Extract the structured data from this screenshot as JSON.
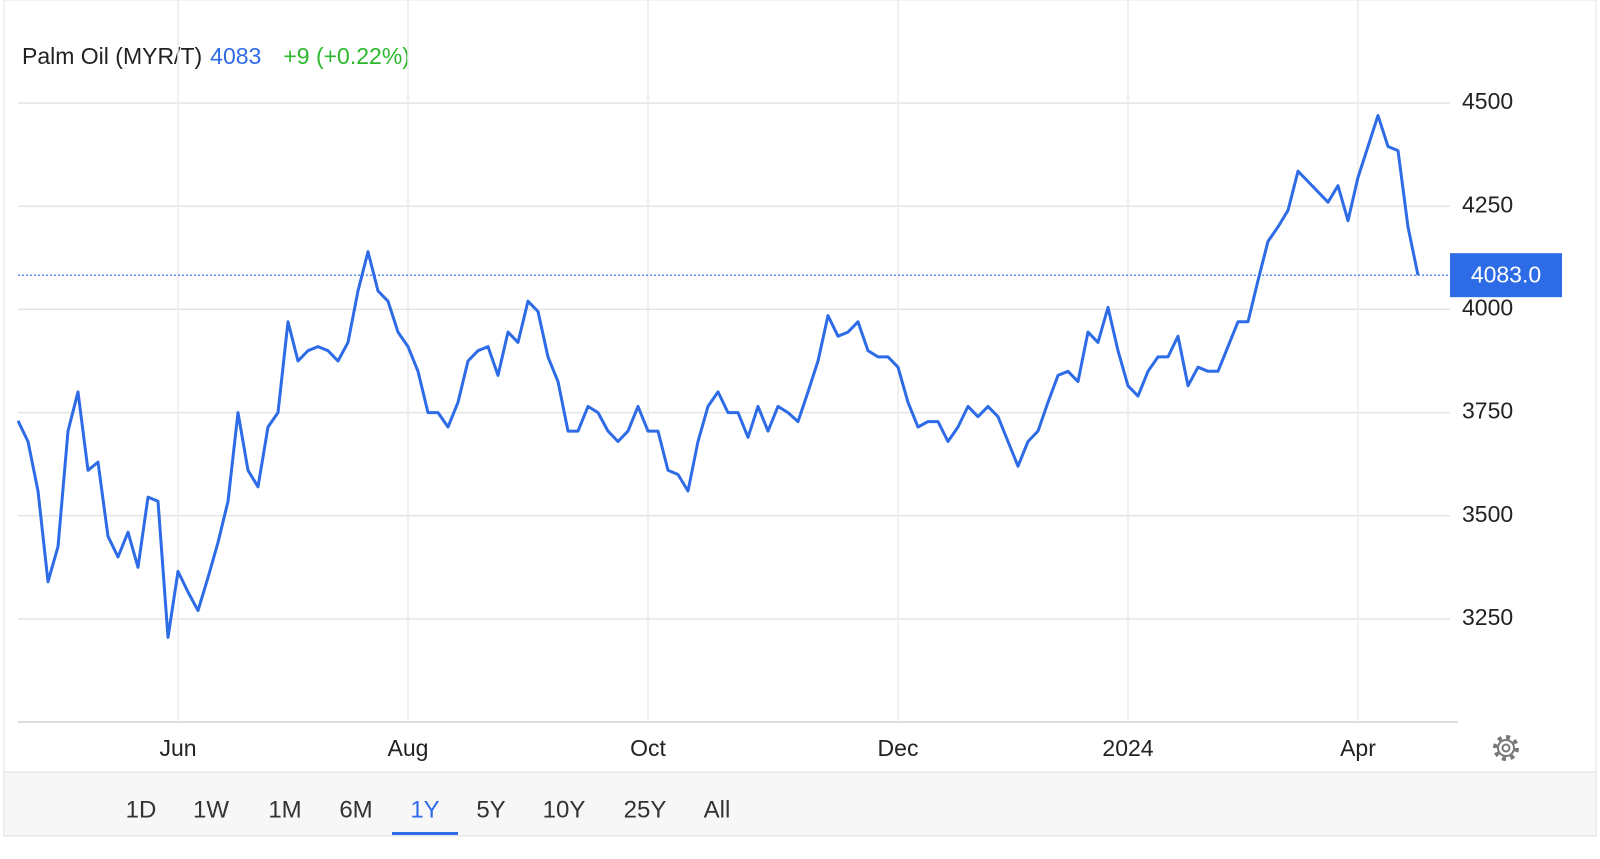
{
  "chart_data": {
    "type": "line",
    "title": "Palm Oil (MYR/T)",
    "price": 4083,
    "change": "+9 (+0.22%)",
    "price_badge": {
      "value": 4083,
      "label": "4083.0"
    },
    "categories": [
      null,
      null,
      null,
      null,
      null,
      null,
      null,
      null,
      null,
      null,
      null,
      null,
      null,
      null,
      null,
      null,
      "Jun",
      null,
      null,
      null,
      null,
      null,
      null,
      null,
      null,
      null,
      null,
      null,
      null,
      null,
      null,
      null,
      null,
      null,
      null,
      null,
      null,
      null,
      null,
      "Aug",
      null,
      null,
      null,
      null,
      null,
      null,
      null,
      null,
      null,
      null,
      null,
      null,
      null,
      null,
      null,
      null,
      null,
      null,
      null,
      null,
      null,
      null,
      null,
      "Oct",
      null,
      null,
      null,
      null,
      null,
      null,
      null,
      null,
      null,
      null,
      null,
      null,
      null,
      null,
      null,
      null,
      null,
      null,
      null,
      null,
      null,
      null,
      null,
      null,
      "Dec",
      null,
      null,
      null,
      null,
      null,
      null,
      null,
      null,
      null,
      null,
      null,
      null,
      null,
      null,
      null,
      null,
      null,
      null,
      null,
      null,
      null,
      null,
      "2024",
      null,
      null,
      null,
      null,
      null,
      null,
      null,
      null,
      null,
      null,
      null,
      null,
      null,
      null,
      null,
      null,
      null,
      null,
      null,
      null,
      null,
      null,
      "Apr",
      null,
      null,
      null,
      null,
      null,
      null
    ],
    "series": [
      {
        "name": "Palm Oil",
        "color": "#2e6be6",
        "values": [
          3730,
          3680,
          3560,
          3340,
          3425,
          3705,
          3800,
          3610,
          3630,
          3450,
          3400,
          3460,
          3375,
          3545,
          3535,
          3205,
          3365,
          3315,
          3270,
          3350,
          3435,
          3535,
          3750,
          3610,
          3570,
          3715,
          3750,
          3970,
          3875,
          3900,
          3910,
          3900,
          3875,
          3920,
          4045,
          4140,
          4045,
          4020,
          3945,
          3910,
          3850,
          3750,
          3750,
          3715,
          3775,
          3875,
          3900,
          3910,
          3840,
          3945,
          3920,
          4020,
          3995,
          3885,
          3825,
          3705,
          3705,
          3765,
          3750,
          3705,
          3680,
          3705,
          3765,
          3705,
          3705,
          3610,
          3600,
          3560,
          3680,
          3765,
          3800,
          3750,
          3750,
          3690,
          3765,
          3705,
          3765,
          3750,
          3728,
          3800,
          3875,
          3985,
          3935,
          3945,
          3970,
          3900,
          3885,
          3885,
          3860,
          3775,
          3715,
          3728,
          3728,
          3680,
          3715,
          3765,
          3740,
          3765,
          3740,
          3680,
          3620,
          3680,
          3705,
          3775,
          3840,
          3850,
          3825,
          3945,
          3920,
          4005,
          3900,
          3815,
          3790,
          3850,
          3885,
          3885,
          3935,
          3815,
          3860,
          3850,
          3850,
          3910,
          3970,
          3970,
          4070,
          4165,
          4200,
          4240,
          4335,
          4310,
          4285,
          4260,
          4300,
          4215,
          4320,
          4395,
          4470,
          4395,
          4385,
          4200,
          4083
        ]
      }
    ],
    "ylim": [
      3000,
      4750
    ],
    "yticks": [
      3250,
      3500,
      3750,
      4000,
      4250,
      4500
    ],
    "grid": true,
    "ranges": [
      "1D",
      "1W",
      "1M",
      "6M",
      "1Y",
      "5Y",
      "10Y",
      "25Y",
      "All"
    ],
    "selected_range": "1Y"
  }
}
